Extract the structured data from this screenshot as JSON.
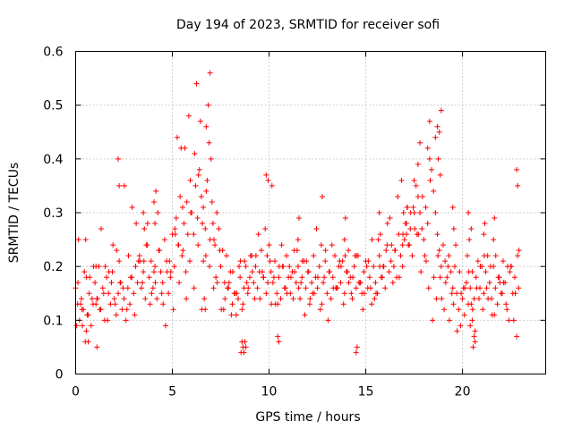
{
  "chart_data": {
    "type": "scatter",
    "title": "Day 194 of 2023, SRMTID for receiver sofi",
    "xlabel": "GPS time / hours",
    "ylabel": "SRMTID / TECUs",
    "xlim": [
      0,
      24.3
    ],
    "ylim": [
      0,
      0.6
    ],
    "x_ticks": [
      0,
      5,
      10,
      15,
      20
    ],
    "y_ticks": [
      0,
      0.1,
      0.2,
      0.3,
      0.4,
      0.5,
      0.6
    ],
    "x_tick_labels": [
      "0",
      "5",
      "10",
      "15",
      "20"
    ],
    "y_tick_labels": [
      "0",
      "0.1",
      "0.2",
      "0.3",
      "0.4",
      "0.5",
      "0.6"
    ],
    "grid": true,
    "marker": "plus",
    "color": "#ff0000",
    "series": [
      {
        "name": "SRMTID",
        "x": [
          0.0,
          0.1,
          0.15,
          0.2,
          0.3,
          0.35,
          0.4,
          0.5,
          0.55,
          0.6,
          0.7,
          0.8,
          0.9,
          1.0,
          1.1,
          1.2,
          1.3,
          1.4,
          1.5,
          1.6,
          1.7,
          1.8,
          1.9,
          2.0,
          2.1,
          2.2,
          2.3,
          2.4,
          2.5,
          2.6,
          2.7,
          2.8,
          2.9,
          3.0,
          3.1,
          3.2,
          3.3,
          3.4,
          3.5,
          3.6,
          3.7,
          3.8,
          3.9,
          4.0,
          4.1,
          4.2,
          4.3,
          4.4,
          4.5,
          4.6,
          4.7,
          4.8,
          4.9,
          5.0,
          5.05,
          5.1,
          5.2,
          5.3,
          5.4,
          5.5,
          5.6,
          5.7,
          5.8,
          5.9,
          6.0,
          6.1,
          6.2,
          6.3,
          6.4,
          6.5,
          6.6,
          6.7,
          6.8,
          6.9,
          7.0,
          7.05,
          7.1,
          7.15,
          7.2,
          7.3,
          7.4,
          7.5,
          7.6,
          7.7,
          7.8,
          7.9,
          8.0,
          8.1,
          8.2,
          8.3,
          8.4,
          8.5,
          8.6,
          8.7,
          8.8,
          8.9,
          9.0,
          9.1,
          9.2,
          9.3,
          9.4,
          9.5,
          9.6,
          9.7,
          9.8,
          9.9,
          10.0,
          10.1,
          10.2,
          10.3,
          10.4,
          10.5,
          10.6,
          10.7,
          10.8,
          10.9,
          11.0,
          11.1,
          11.2,
          11.3,
          11.4,
          11.5,
          11.6,
          11.7,
          11.8,
          11.9,
          12.0,
          12.1,
          12.2,
          12.3,
          12.4,
          12.5,
          12.6,
          12.7,
          12.8,
          12.9,
          13.0,
          13.1,
          13.2,
          13.3,
          13.4,
          13.5,
          13.6,
          13.7,
          13.8,
          13.9,
          14.0,
          14.1,
          14.2,
          14.3,
          14.4,
          14.5,
          14.6,
          14.7,
          14.8,
          14.9,
          15.0,
          15.1,
          15.2,
          15.3,
          15.4,
          15.5,
          15.6,
          15.7,
          15.8,
          15.9,
          16.0,
          16.1,
          16.2,
          16.3,
          16.4,
          16.5,
          16.6,
          16.7,
          16.8,
          16.9,
          17.0,
          17.1,
          17.2,
          17.3,
          17.4,
          17.5,
          17.6,
          17.7,
          17.8,
          17.9,
          18.0,
          18.1,
          18.2,
          18.3,
          18.4,
          18.5,
          18.6,
          18.7,
          18.8,
          18.9,
          19.0,
          19.1,
          19.2,
          19.3,
          19.4,
          19.5,
          19.6,
          19.7,
          19.8,
          19.9,
          20.0,
          20.1,
          20.2,
          20.3,
          20.4,
          20.5,
          20.6,
          20.7,
          20.8,
          20.9,
          21.0,
          21.1,
          21.2,
          21.3,
          21.4,
          21.5,
          21.6,
          21.7,
          21.8,
          21.9,
          22.0,
          22.1,
          22.2,
          22.3,
          22.4,
          22.5,
          22.6,
          22.7,
          22.8,
          22.9,
          0.05,
          0.25,
          0.45,
          0.65,
          0.85,
          1.05,
          1.25,
          1.45,
          1.65,
          1.85,
          2.05,
          2.25,
          2.45,
          2.65,
          2.85,
          3.05,
          3.25,
          3.45,
          3.65,
          3.85,
          4.05,
          4.25,
          4.45,
          4.65,
          4.85,
          5.15,
          5.35,
          5.55,
          5.75,
          5.95,
          6.15,
          6.35,
          6.55,
          6.75,
          6.95,
          7.25,
          7.45,
          7.65,
          7.85,
          8.05,
          8.25,
          8.45,
          8.65,
          8.85,
          9.05,
          9.25,
          9.45,
          9.65,
          9.85,
          10.05,
          10.25,
          10.45,
          10.65,
          10.85,
          11.05,
          11.25,
          11.45,
          11.65,
          11.85,
          12.05,
          12.25,
          12.45,
          12.65,
          12.85,
          13.05,
          13.25,
          13.45,
          13.65,
          13.85,
          14.05,
          14.25,
          14.45,
          14.65,
          14.85,
          15.05,
          15.25,
          15.45,
          15.65,
          15.85,
          16.05,
          16.25,
          16.45,
          16.65,
          16.85,
          17.05,
          17.25,
          17.45,
          17.65,
          17.85,
          18.05,
          18.25,
          18.45,
          18.65,
          18.85,
          19.05,
          19.25,
          19.45,
          19.65,
          19.85,
          20.05,
          20.25,
          20.45,
          20.65,
          20.85,
          21.05,
          21.25,
          21.45,
          21.65,
          21.85,
          22.05,
          22.25,
          22.45,
          22.65,
          22.85,
          0.12,
          0.52,
          0.92,
          1.32,
          1.72,
          2.12,
          2.52,
          2.92,
          3.32,
          3.72,
          4.12,
          4.52,
          4.92,
          5.32,
          5.72,
          6.12,
          6.52,
          6.92,
          7.32,
          7.72,
          8.12,
          8.52,
          8.92,
          9.32,
          9.72,
          10.12,
          10.52,
          10.92,
          11.32,
          11.72,
          12.12,
          12.52,
          12.92,
          13.32,
          13.72,
          14.12,
          14.52,
          14.92,
          15.32,
          15.72,
          16.12,
          16.52,
          16.92,
          17.32,
          17.72,
          18.12,
          18.52,
          18.92,
          19.32,
          19.72,
          20.12,
          20.52,
          20.92,
          21.32,
          21.72,
          22.12,
          22.52,
          22.92,
          0.33,
          0.73,
          1.13,
          1.53,
          1.93,
          2.33,
          2.73,
          3.13,
          3.53,
          3.93,
          4.33,
          4.73,
          5.13,
          5.53,
          5.93,
          6.33,
          6.73,
          7.13,
          7.53,
          7.93,
          8.33,
          8.73,
          9.13,
          9.53,
          9.93,
          10.33,
          10.73,
          11.13,
          11.53,
          11.93,
          12.33,
          12.73,
          13.13,
          13.53,
          13.93,
          14.33,
          14.73,
          15.13,
          15.53,
          15.93,
          16.33,
          16.73,
          17.13,
          17.53,
          17.93,
          18.33,
          18.73,
          19.13,
          19.53,
          19.93,
          20.33,
          20.73,
          21.13,
          21.53,
          21.93,
          22.33,
          22.73,
          6.6,
          6.65,
          6.7,
          6.75,
          6.85,
          6.95,
          6.25,
          6.45,
          5.45,
          5.25,
          5.85,
          5.65,
          18.75,
          18.8,
          18.85,
          18.7,
          18.9,
          18.6,
          18.3,
          18.2,
          17.8,
          17.7,
          17.5,
          9.85,
          9.95,
          10.15,
          12.75,
          22.8,
          22.85,
          4.05,
          4.1,
          4.15,
          2.2,
          2.25,
          20.3,
          20.35,
          20.4,
          20.45,
          20.5,
          20.55,
          20.6,
          20.65,
          0.55,
          0.6,
          0.65,
          1.05,
          1.1,
          8.55,
          8.6,
          8.65,
          8.7,
          8.75,
          8.8,
          10.45,
          10.5,
          14.5,
          14.55,
          13.9,
          13.95,
          16.9,
          16.95,
          17.1,
          17.15,
          11.5,
          11.55,
          15.7,
          15.75,
          19.5,
          19.55,
          21.1,
          21.15,
          21.6,
          21.65,
          3.5,
          3.55
        ],
        "y": [
          0.16,
          0.13,
          0.25,
          0.1,
          0.14,
          0.09,
          0.12,
          0.06,
          0.18,
          0.11,
          0.15,
          0.09,
          0.13,
          0.17,
          0.14,
          0.2,
          0.12,
          0.16,
          0.1,
          0.18,
          0.15,
          0.13,
          0.19,
          0.14,
          0.11,
          0.15,
          0.17,
          0.12,
          0.14,
          0.1,
          0.16,
          0.13,
          0.18,
          0.15,
          0.2,
          0.17,
          0.22,
          0.16,
          0.19,
          0.14,
          0.24,
          0.18,
          0.21,
          0.16,
          0.2,
          0.14,
          0.23,
          0.19,
          0.17,
          0.25,
          0.21,
          0.15,
          0.18,
          0.26,
          0.12,
          0.2,
          0.29,
          0.24,
          0.33,
          0.22,
          0.28,
          0.19,
          0.26,
          0.21,
          0.3,
          0.26,
          0.35,
          0.29,
          0.38,
          0.33,
          0.31,
          0.27,
          0.36,
          0.43,
          0.4,
          0.32,
          0.28,
          0.25,
          0.24,
          0.3,
          0.27,
          0.2,
          0.23,
          0.17,
          0.22,
          0.16,
          0.19,
          0.13,
          0.15,
          0.11,
          0.14,
          0.18,
          0.12,
          0.16,
          0.2,
          0.15,
          0.18,
          0.22,
          0.17,
          0.2,
          0.16,
          0.19,
          0.23,
          0.18,
          0.27,
          0.22,
          0.24,
          0.19,
          0.17,
          0.21,
          0.15,
          0.18,
          0.14,
          0.2,
          0.16,
          0.22,
          0.18,
          0.15,
          0.19,
          0.23,
          0.17,
          0.2,
          0.14,
          0.18,
          0.21,
          0.16,
          0.19,
          0.13,
          0.17,
          0.22,
          0.18,
          0.16,
          0.2,
          0.24,
          0.17,
          0.21,
          0.15,
          0.19,
          0.14,
          0.18,
          0.22,
          0.16,
          0.2,
          0.17,
          0.21,
          0.15,
          0.19,
          0.23,
          0.18,
          0.14,
          0.2,
          0.16,
          0.22,
          0.17,
          0.15,
          0.19,
          0.21,
          0.16,
          0.18,
          0.13,
          0.2,
          0.17,
          0.15,
          0.22,
          0.18,
          0.2,
          0.16,
          0.24,
          0.19,
          0.21,
          0.17,
          0.23,
          0.18,
          0.26,
          0.22,
          0.2,
          0.25,
          0.28,
          0.24,
          0.27,
          0.22,
          0.3,
          0.35,
          0.33,
          0.3,
          0.27,
          0.25,
          0.31,
          0.28,
          0.4,
          0.38,
          0.34,
          0.3,
          0.26,
          0.23,
          0.2,
          0.24,
          0.21,
          0.18,
          0.22,
          0.19,
          0.16,
          0.2,
          0.15,
          0.12,
          0.09,
          0.14,
          0.11,
          0.17,
          0.13,
          0.16,
          0.19,
          0.14,
          0.18,
          0.21,
          0.16,
          0.2,
          0.15,
          0.19,
          0.22,
          0.17,
          0.14,
          0.2,
          0.16,
          0.13,
          0.18,
          0.15,
          0.21,
          0.17,
          0.12,
          0.1,
          0.2,
          0.15,
          0.18,
          0.07,
          0.16,
          0.09,
          0.13,
          0.19,
          0.11,
          0.14,
          0.2,
          0.12,
          0.15,
          0.1,
          0.17,
          0.13,
          0.21,
          0.16,
          0.12,
          0.18,
          0.11,
          0.21,
          0.17,
          0.24,
          0.13,
          0.19,
          0.3,
          0.15,
          0.09,
          0.21,
          0.26,
          0.17,
          0.23,
          0.32,
          0.3,
          0.41,
          0.37,
          0.28,
          0.34,
          0.25,
          0.18,
          0.23,
          0.12,
          0.16,
          0.11,
          0.15,
          0.2,
          0.13,
          0.17,
          0.22,
          0.14,
          0.26,
          0.19,
          0.15,
          0.21,
          0.18,
          0.13,
          0.24,
          0.16,
          0.2,
          0.14,
          0.23,
          0.17,
          0.11,
          0.19,
          0.15,
          0.27,
          0.12,
          0.18,
          0.1,
          0.24,
          0.16,
          0.21,
          0.13,
          0.19,
          0.15,
          0.22,
          0.17,
          0.12,
          0.2,
          0.16,
          0.14,
          0.25,
          0.18,
          0.23,
          0.29,
          0.2,
          0.33,
          0.36,
          0.28,
          0.24,
          0.31,
          0.26,
          0.19,
          0.22,
          0.16,
          0.1,
          0.14,
          0.18,
          0.12,
          0.2,
          0.15,
          0.24,
          0.19,
          0.16,
          0.22,
          0.13,
          0.08,
          0.14,
          0.12,
          0.16,
          0.2,
          0.11,
          0.18,
          0.15,
          0.13,
          0.19,
          0.1,
          0.22,
          0.17,
          0.25,
          0.2,
          0.27,
          0.19,
          0.23,
          0.35,
          0.31,
          0.21,
          0.28,
          0.17,
          0.13,
          0.19,
          0.24,
          0.14,
          0.16,
          0.12,
          0.2,
          0.17,
          0.14,
          0.19,
          0.21,
          0.16,
          0.22,
          0.18,
          0.13,
          0.2,
          0.15,
          0.19,
          0.21,
          0.14,
          0.18,
          0.23,
          0.16,
          0.2,
          0.17,
          0.22,
          0.15,
          0.25,
          0.2,
          0.28,
          0.23,
          0.26,
          0.3,
          0.26,
          0.21,
          0.18,
          0.14,
          0.1,
          0.08,
          0.16,
          0.12,
          0.2,
          0.14,
          0.22,
          0.17,
          0.2,
          0.23,
          0.12,
          0.18,
          0.14,
          0.2,
          0.24,
          0.17,
          0.22,
          0.28,
          0.21,
          0.15,
          0.23,
          0.19,
          0.27,
          0.31,
          0.36,
          0.24,
          0.22,
          0.16,
          0.12,
          0.17,
          0.15,
          0.21,
          0.19,
          0.14,
          0.17,
          0.13,
          0.2,
          0.18,
          0.16,
          0.21,
          0.15,
          0.13,
          0.19,
          0.16,
          0.22,
          0.18,
          0.17,
          0.21,
          0.15,
          0.2,
          0.24,
          0.18,
          0.31,
          0.27,
          0.33,
          0.36,
          0.22,
          0.17,
          0.13,
          0.15,
          0.19,
          0.16,
          0.22,
          0.11,
          0.17,
          0.2,
          0.15,
          0.21,
          0.14,
          0.12,
          0.46,
          0.5,
          0.56,
          0.54,
          0.47,
          0.42,
          0.44,
          0.48,
          0.42,
          0.4,
          0.45,
          0.37,
          0.46,
          0.49,
          0.44,
          0.47,
          0.42,
          0.43,
          0.39,
          0.36,
          0.37,
          0.36,
          0.35,
          0.33,
          0.38,
          0.35,
          0.32,
          0.28,
          0.34,
          0.4,
          0.35,
          0.3,
          0.25,
          0.09,
          0.27,
          0.1,
          0.05,
          0.07,
          0.06,
          0.08,
          0.11,
          0.06,
          0.13,
          0.05,
          0.04,
          0.06,
          0.05,
          0.04,
          0.06,
          0.05,
          0.07,
          0.06,
          0.04,
          0.05,
          0.25,
          0.29,
          0.24,
          0.3,
          0.26,
          0.31,
          0.25,
          0.29,
          0.3,
          0.26,
          0.31,
          0.27,
          0.26,
          0.28,
          0.25,
          0.29,
          0.3,
          0.27
        ]
      }
    ]
  }
}
